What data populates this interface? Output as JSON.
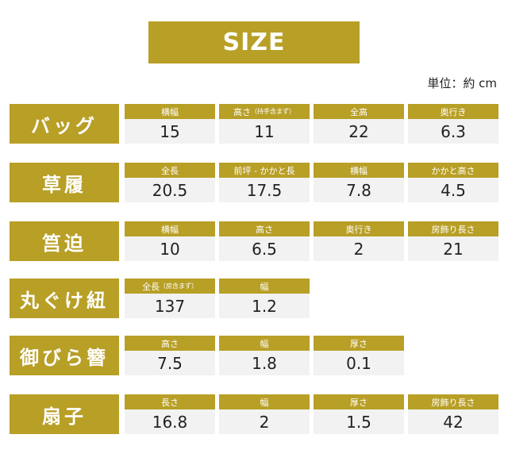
{
  "header": {
    "title": "SIZE",
    "unit": "単位：約 cm"
  },
  "items": [
    {
      "name": "バッグ",
      "cells": [
        {
          "label": "横幅",
          "value": "15"
        },
        {
          "label": "高さ",
          "note": "（持手含まず）",
          "value": "11"
        },
        {
          "label": "全高",
          "value": "22"
        },
        {
          "label": "奥行き",
          "value": "6.3"
        }
      ]
    },
    {
      "name": "草履",
      "cells": [
        {
          "label": "全長",
          "value": "20.5"
        },
        {
          "label": "前坪 - かかと長",
          "value": "17.5"
        },
        {
          "label": "横幅",
          "value": "7.8"
        },
        {
          "label": "かかと高さ",
          "value": "4.5"
        }
      ]
    },
    {
      "name": "筥迫",
      "cells": [
        {
          "label": "横幅",
          "value": "10"
        },
        {
          "label": "高さ",
          "value": "6.5"
        },
        {
          "label": "奥行き",
          "value": "2"
        },
        {
          "label": "房飾り長さ",
          "value": "21"
        }
      ]
    },
    {
      "name": "丸ぐけ紐",
      "cells": [
        {
          "label": "全長",
          "note": "（房含まず）",
          "value": "137"
        },
        {
          "label": "幅",
          "value": "1.2"
        }
      ]
    },
    {
      "name": "御びら簪",
      "cells": [
        {
          "label": "高さ",
          "value": "7.5"
        },
        {
          "label": "幅",
          "value": "1.8"
        },
        {
          "label": "厚さ",
          "value": "0.1"
        }
      ]
    },
    {
      "name": "扇子",
      "cells": [
        {
          "label": "長さ",
          "value": "16.8"
        },
        {
          "label": "幅",
          "value": "2"
        },
        {
          "label": "厚さ",
          "value": "1.5"
        },
        {
          "label": "房飾り長さ",
          "value": "42"
        }
      ]
    }
  ]
}
